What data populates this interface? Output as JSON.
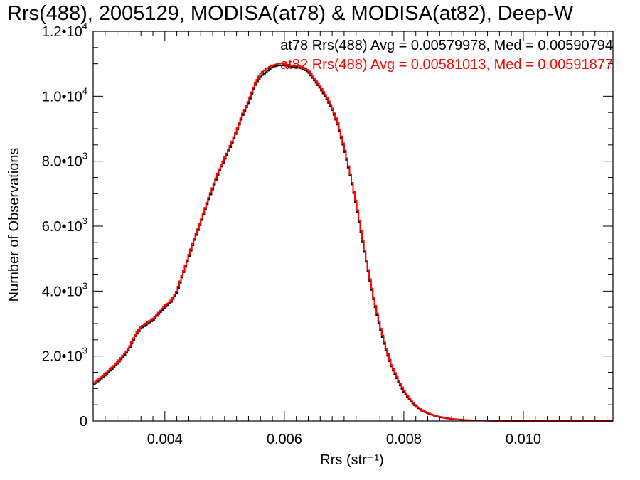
{
  "chart_data": {
    "type": "line",
    "title": "Rrs(488), 2005129, MODISA(at78) & MODISA(at82), Deep-W",
    "xlabel": "Rrs (str⁻¹)",
    "ylabel": "Number of Observations",
    "xlim": [
      0.0028,
      0.0115
    ],
    "ylim": [
      0,
      12000
    ],
    "xticks": [
      0.004,
      0.006,
      0.008,
      0.01
    ],
    "xtick_labels": [
      "0.004",
      "0.006",
      "0.008",
      "0.010"
    ],
    "yticks": [
      0,
      2000,
      4000,
      6000,
      8000,
      10000,
      12000
    ],
    "ytick_labels": [
      {
        "mantissa": "0",
        "exp": ""
      },
      {
        "mantissa": "2.0•10",
        "exp": "3"
      },
      {
        "mantissa": "4.0•10",
        "exp": "3"
      },
      {
        "mantissa": "6.0•10",
        "exp": "3"
      },
      {
        "mantissa": "8.0•10",
        "exp": "3"
      },
      {
        "mantissa": "1.0•10",
        "exp": "4"
      },
      {
        "mantissa": "1.2•10",
        "exp": "4"
      }
    ],
    "legend_placement": "top-right",
    "grid": false,
    "series": [
      {
        "legend": "at78 Rrs(488) Avg = 0.00579978, Med = 0.00590794",
        "color": "#000000",
        "x": [
          0.0028,
          0.003,
          0.0032,
          0.0034,
          0.0035,
          0.0036,
          0.0038,
          0.0039,
          0.004,
          0.0041,
          0.0042,
          0.0043,
          0.0044,
          0.0045,
          0.0046,
          0.0047,
          0.0048,
          0.0049,
          0.005,
          0.0051,
          0.0052,
          0.0053,
          0.0054,
          0.0055,
          0.0056,
          0.0057,
          0.0058,
          0.0059,
          0.006,
          0.0061,
          0.0062,
          0.0063,
          0.0064,
          0.0065,
          0.0066,
          0.0067,
          0.0068,
          0.0069,
          0.007,
          0.0071,
          0.0072,
          0.0073,
          0.0074,
          0.0075,
          0.0076,
          0.0077,
          0.0078,
          0.0079,
          0.008,
          0.0081,
          0.0082,
          0.0083,
          0.0084,
          0.0085,
          0.0086,
          0.0088,
          0.009,
          0.0092,
          0.0094,
          0.0096,
          0.0098,
          0.01,
          0.0104,
          0.0108,
          0.0115
        ],
        "y": [
          1100,
          1400,
          1750,
          2200,
          2600,
          2850,
          3100,
          3300,
          3500,
          3650,
          3950,
          4500,
          5050,
          5600,
          6100,
          6650,
          7150,
          7650,
          8050,
          8450,
          8900,
          9400,
          9800,
          10300,
          10600,
          10750,
          10900,
          10950,
          10950,
          10900,
          10900,
          10850,
          10750,
          10500,
          10250,
          9950,
          9600,
          9100,
          8400,
          7600,
          6700,
          5650,
          4650,
          3700,
          2900,
          2200,
          1650,
          1250,
          900,
          650,
          450,
          320,
          240,
          170,
          120,
          60,
          30,
          15,
          8,
          5,
          3,
          2,
          1,
          0,
          0
        ]
      },
      {
        "legend": "at82 Rrs(488) Avg = 0.00581013, Med = 0.00591877",
        "color": "#ff0000",
        "x": [
          0.0028,
          0.003,
          0.0032,
          0.0034,
          0.0035,
          0.0036,
          0.0038,
          0.0039,
          0.004,
          0.0041,
          0.0042,
          0.0043,
          0.0044,
          0.0045,
          0.0046,
          0.0047,
          0.0048,
          0.0049,
          0.005,
          0.0051,
          0.0052,
          0.0053,
          0.0054,
          0.0055,
          0.0056,
          0.0057,
          0.0058,
          0.0059,
          0.006,
          0.0061,
          0.0062,
          0.0063,
          0.0064,
          0.0065,
          0.0066,
          0.0067,
          0.0068,
          0.0069,
          0.007,
          0.0071,
          0.0072,
          0.0073,
          0.0074,
          0.0075,
          0.0076,
          0.0077,
          0.0078,
          0.0079,
          0.008,
          0.0081,
          0.0082,
          0.0083,
          0.0084,
          0.0085,
          0.0086,
          0.0088,
          0.009,
          0.0092,
          0.0094,
          0.0096,
          0.0098,
          0.01,
          0.0104,
          0.0108,
          0.0115
        ],
        "y": [
          1150,
          1450,
          1800,
          2250,
          2650,
          2900,
          3150,
          3350,
          3550,
          3700,
          4000,
          4550,
          5100,
          5650,
          6150,
          6700,
          7200,
          7700,
          8100,
          8500,
          8950,
          9450,
          9850,
          10350,
          10700,
          10850,
          10950,
          11000,
          11000,
          10950,
          10950,
          10900,
          10800,
          10550,
          10300,
          10000,
          9650,
          9150,
          8450,
          7650,
          6750,
          5700,
          4700,
          3750,
          2950,
          2250,
          1700,
          1300,
          950,
          680,
          470,
          340,
          250,
          180,
          130,
          65,
          35,
          18,
          9,
          6,
          4,
          2,
          1,
          0,
          0
        ]
      }
    ]
  }
}
